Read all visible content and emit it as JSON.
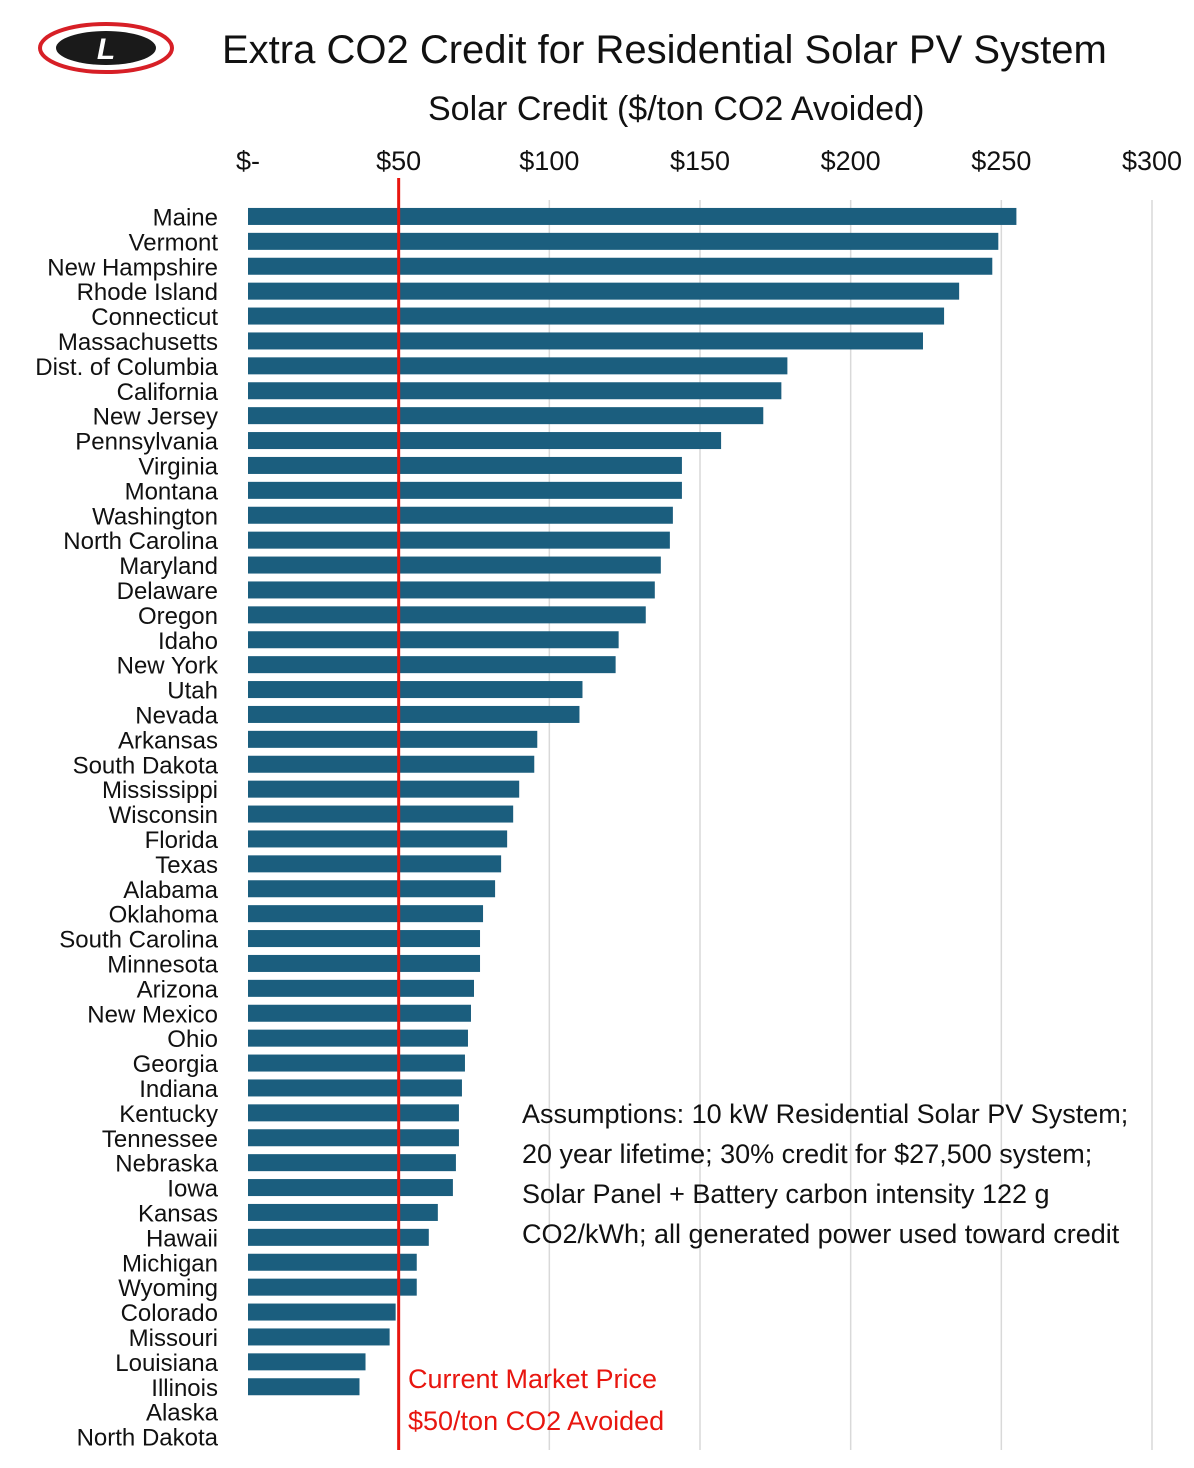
{
  "header": {
    "title": "Extra CO2 Credit for Residential Solar PV System",
    "axis_title": "Solar Credit ($/ton CO2 Avoided)"
  },
  "chart_data": {
    "type": "bar",
    "orientation": "horizontal",
    "title": "Extra CO2 Credit for Residential Solar PV System",
    "xlabel": "Solar Credit ($/ton CO2 Avoided)",
    "ylabel": "",
    "xlim": [
      0,
      300
    ],
    "x_ticks": [
      0,
      50,
      100,
      150,
      200,
      250,
      300
    ],
    "x_tick_labels": [
      "$-",
      "$50",
      "$100",
      "$150",
      "$200",
      "$250",
      "$300"
    ],
    "grid": true,
    "bar_color": "#1b5e7e",
    "categories": [
      "Maine",
      "Vermont",
      "New Hampshire",
      "Rhode Island",
      "Connecticut",
      "Massachusetts",
      "Dist. of Columbia",
      "California",
      "New Jersey",
      "Pennsylvania",
      "Virginia",
      "Montana",
      "Washington",
      "North Carolina",
      "Maryland",
      "Delaware",
      "Oregon",
      "Idaho",
      "New York",
      "Utah",
      "Nevada",
      "Arkansas",
      "South Dakota",
      "Mississippi",
      "Wisconsin",
      "Florida",
      "Texas",
      "Alabama",
      "Oklahoma",
      "South Carolina",
      "Minnesota",
      "Arizona",
      "New Mexico",
      "Ohio",
      "Georgia",
      "Indiana",
      "Kentucky",
      "Tennessee",
      "Nebraska",
      "Iowa",
      "Kansas",
      "Hawaii",
      "Michigan",
      "Wyoming",
      "Colorado",
      "Missouri",
      "Louisiana",
      "Illinois",
      "Alaska",
      "North Dakota"
    ],
    "values": [
      255,
      249,
      247,
      236,
      231,
      224,
      179,
      177,
      171,
      157,
      144,
      144,
      141,
      140,
      137,
      135,
      132,
      123,
      122,
      111,
      110,
      96,
      95,
      90,
      88,
      86,
      84,
      82,
      78,
      77,
      77,
      75,
      74,
      73,
      72,
      71,
      70,
      70,
      69,
      68,
      63,
      60,
      56,
      56,
      49,
      47,
      39,
      37,
      0,
      0
    ],
    "reference_line": {
      "value": 50,
      "color": "#e8160f",
      "label_line1": "Current Market Price",
      "label_line2": "$50/ton CO2 Avoided"
    },
    "annotation": "Assumptions: 10 kW Residential Solar PV System; 20 year lifetime; 30% credit for $27,500 system; Solar Panel + Battery carbon intensity 122 g CO2/kWh; all generated power used toward credit"
  },
  "logo": {
    "letter": "L",
    "colors": {
      "ring": "#d71f26",
      "body": "#1a1a1a"
    }
  }
}
